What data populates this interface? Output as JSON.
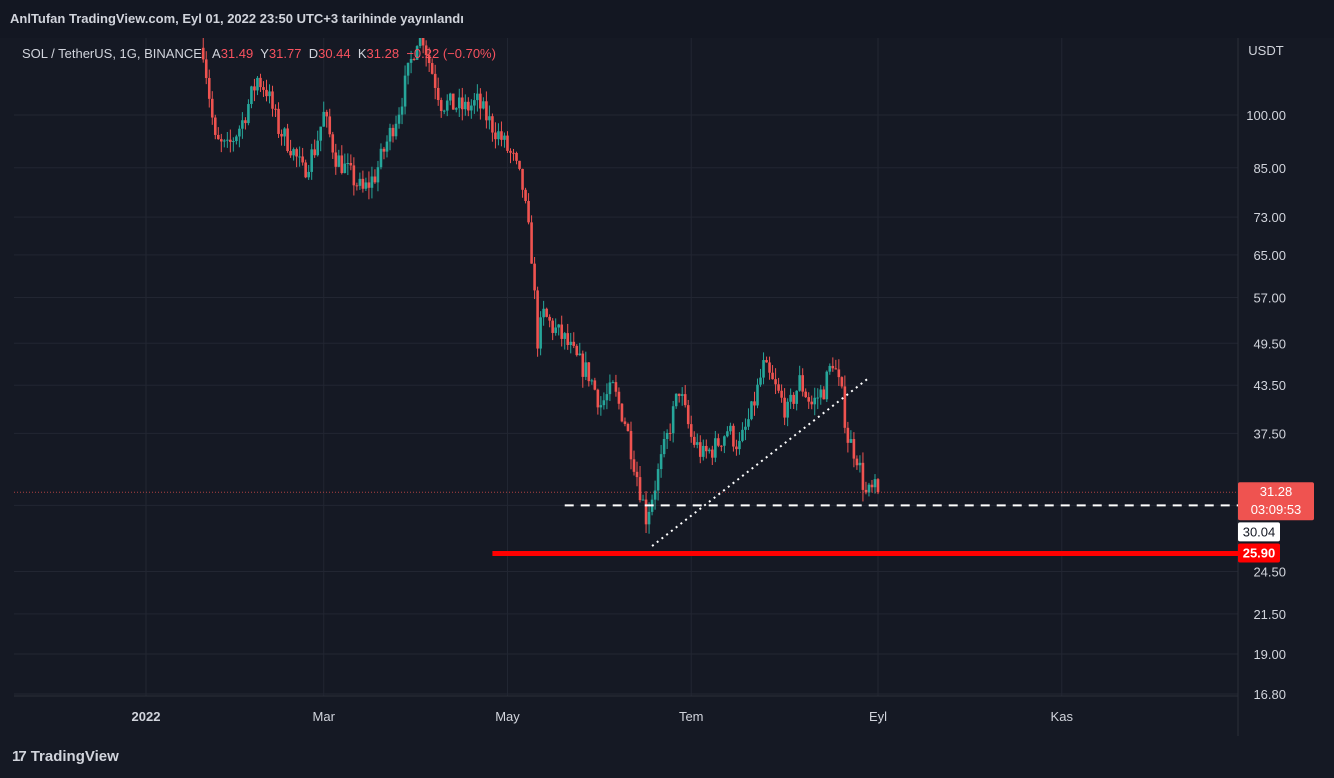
{
  "header": {
    "publication": "AnlTufan TradingView.com, Eyl 01, 2022 23:50 UTC+3 tarihinde yayınlandı"
  },
  "symbol_bar": {
    "symbol": "SOL / TetherUS, 1G, BINANCE",
    "open_label": "A",
    "open_value": "31.49",
    "high_label": "Y",
    "high_value": "31.77",
    "low_label": "D",
    "low_value": "30.44",
    "close_label": "K",
    "close_value": "31.28",
    "change": "−0.22 (−0.70%)"
  },
  "price_axis": {
    "currency": "USDT",
    "ticks": [
      "100.00",
      "85.00",
      "73.00",
      "65.00",
      "57.00",
      "49.50",
      "43.50",
      "37.50",
      "24.50",
      "21.50",
      "19.00",
      "16.80"
    ]
  },
  "time_axis": {
    "ticks": [
      "2022",
      "Mar",
      "May",
      "Tem",
      "Eyl",
      "Kas"
    ]
  },
  "tags": {
    "last_price": "31.28",
    "countdown": "03:09:53",
    "support_level": "30.04",
    "major_support": "25.90"
  },
  "footer": {
    "brand": "TradingView"
  },
  "colors": {
    "background": "#151924",
    "up": "#26a69a",
    "down": "#ef5350",
    "support_line": "#ff0000",
    "text": "#d1d4dc"
  },
  "chart_data": {
    "type": "candlestick",
    "scale": "log",
    "grid": true,
    "currency": "USDT",
    "x_range": [
      "2022-01-20",
      "2022-09-01"
    ],
    "y_range": [
      16.8,
      125
    ],
    "last_close": 31.28,
    "horizontal_lines": [
      {
        "price": 30.04,
        "style": "dashed",
        "color": "#ffffff"
      },
      {
        "price": 25.9,
        "style": "solid",
        "color": "#ff0000"
      }
    ],
    "trendline": {
      "style": "dotted",
      "from": {
        "date": "2022-06-18",
        "price": 26.5
      },
      "to": {
        "date": "2022-08-29",
        "price": 44.5
      }
    },
    "close_path": [
      [
        "2022-01-20",
        123
      ],
      [
        "2022-01-24",
        92
      ],
      [
        "2022-01-28",
        90
      ],
      [
        "2022-02-02",
        98
      ],
      [
        "2022-02-07",
        112
      ],
      [
        "2022-02-10",
        108
      ],
      [
        "2022-02-14",
        96
      ],
      [
        "2022-02-18",
        91
      ],
      [
        "2022-02-22",
        84
      ],
      [
        "2022-02-26",
        90
      ],
      [
        "2022-03-01",
        100
      ],
      [
        "2022-03-05",
        88
      ],
      [
        "2022-03-09",
        84
      ],
      [
        "2022-03-14",
        79
      ],
      [
        "2022-03-18",
        83
      ],
      [
        "2022-03-22",
        92
      ],
      [
        "2022-03-26",
        102
      ],
      [
        "2022-03-30",
        118
      ],
      [
        "2022-04-02",
        132
      ],
      [
        "2022-04-05",
        118
      ],
      [
        "2022-04-09",
        104
      ],
      [
        "2022-04-13",
        103
      ],
      [
        "2022-04-17",
        102
      ],
      [
        "2022-04-21",
        104
      ],
      [
        "2022-04-25",
        98
      ],
      [
        "2022-04-29",
        93
      ],
      [
        "2022-05-03",
        87
      ],
      [
        "2022-05-06",
        80
      ],
      [
        "2022-05-09",
        65
      ],
      [
        "2022-05-11",
        50
      ],
      [
        "2022-05-13",
        54
      ],
      [
        "2022-05-16",
        52
      ],
      [
        "2022-05-20",
        50
      ],
      [
        "2022-05-24",
        47
      ],
      [
        "2022-05-28",
        45
      ],
      [
        "2022-06-01",
        41
      ],
      [
        "2022-06-05",
        43
      ],
      [
        "2022-06-09",
        39
      ],
      [
        "2022-06-13",
        33
      ],
      [
        "2022-06-16",
        29
      ],
      [
        "2022-06-19",
        32
      ],
      [
        "2022-06-23",
        37
      ],
      [
        "2022-06-27",
        43
      ],
      [
        "2022-07-01",
        37
      ],
      [
        "2022-07-05",
        35
      ],
      [
        "2022-07-09",
        36
      ],
      [
        "2022-07-13",
        38
      ],
      [
        "2022-07-17",
        36
      ],
      [
        "2022-07-21",
        40
      ],
      [
        "2022-07-25",
        46
      ],
      [
        "2022-07-29",
        43
      ],
      [
        "2022-08-02",
        40
      ],
      [
        "2022-08-06",
        44
      ],
      [
        "2022-08-10",
        41
      ],
      [
        "2022-08-14",
        43
      ],
      [
        "2022-08-17",
        47
      ],
      [
        "2022-08-20",
        42
      ],
      [
        "2022-08-22",
        37
      ],
      [
        "2022-08-25",
        35
      ],
      [
        "2022-08-28",
        31
      ],
      [
        "2022-08-31",
        31.5
      ],
      [
        "2022-09-01",
        31.28
      ]
    ]
  }
}
